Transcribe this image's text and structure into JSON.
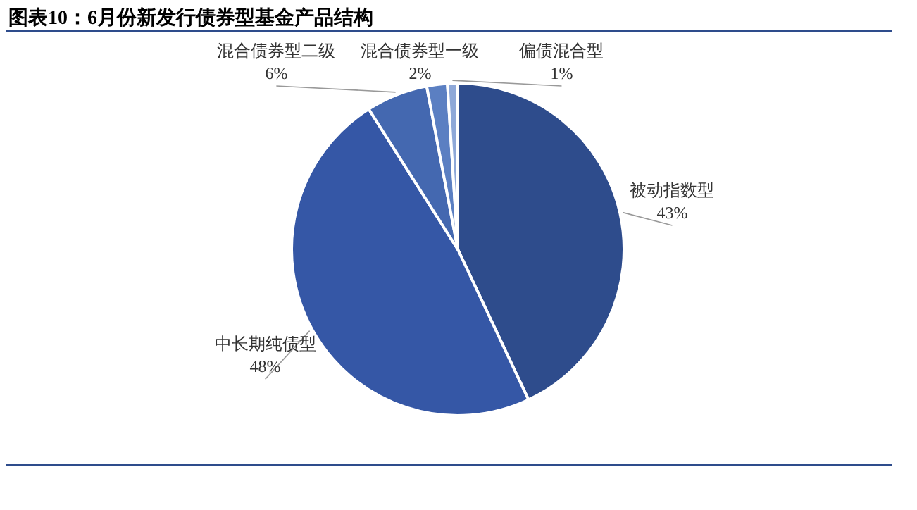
{
  "chart_data": {
    "type": "pie",
    "title": "图表10：6月份新发行债券型基金产品结构",
    "categories": [
      "被动指数型",
      "中长期纯债型",
      "混合债券型二级",
      "混合债券型一级",
      "偏债混合型"
    ],
    "values": [
      43,
      48,
      6,
      2,
      1
    ],
    "colors": [
      "#2e4c8c",
      "#3557a6",
      "#4468b0",
      "#5b7fc2",
      "#8ea8d8"
    ],
    "value_labels": [
      "43%",
      "48%",
      "6%",
      "2%",
      "1%"
    ]
  }
}
